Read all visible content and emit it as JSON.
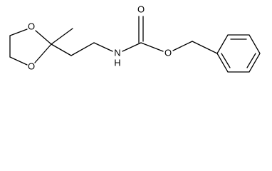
{
  "atoms": {
    "dioxolane_o_top": "O",
    "dioxolane_o_bottom": "O",
    "amine_n": "N",
    "amine_h": "H",
    "carbonyl_o": "O",
    "ester_o": "O"
  }
}
